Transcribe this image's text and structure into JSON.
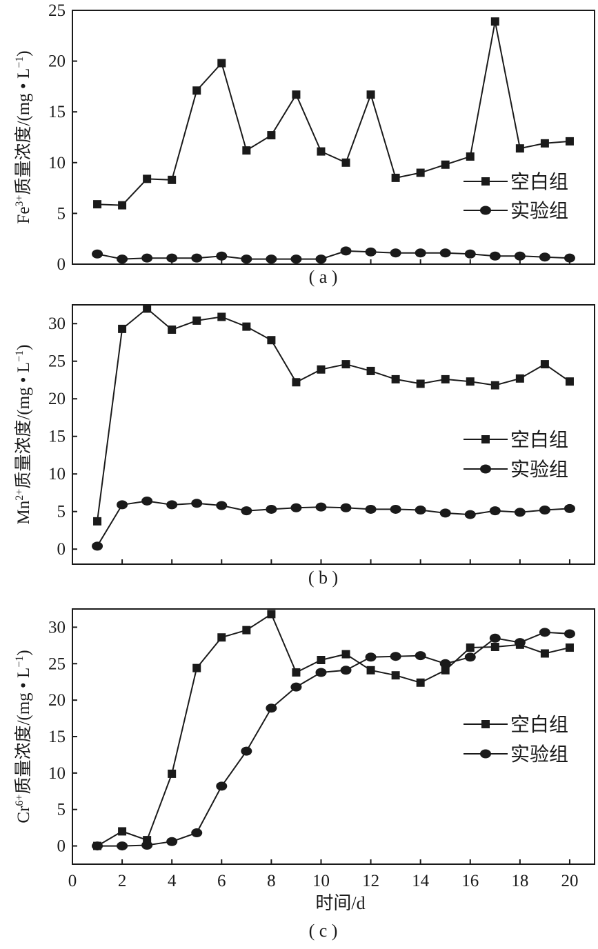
{
  "chart_data": [
    {
      "type": "line",
      "panel_label": "( a )",
      "ylabel_main": "Fe",
      "ylabel_sup": "3+",
      "ylabel_rest": "质量浓度/(mg • L",
      "ylabel_unit_sup": "−1",
      "ylabel_close": ")",
      "ylim": [
        0,
        25
      ],
      "yticks": [
        0,
        5,
        10,
        15,
        20,
        25
      ],
      "ytick_labels": [
        "0",
        "5",
        "10",
        "15",
        "20",
        "25"
      ],
      "xlim": [
        0,
        21
      ],
      "xticks": [
        2,
        4,
        6,
        8,
        10,
        12,
        14,
        16,
        18,
        20
      ],
      "show_xtick_labels": false,
      "legend_position": "right",
      "x": [
        1,
        2,
        3,
        4,
        5,
        6,
        7,
        8,
        9,
        10,
        11,
        12,
        13,
        14,
        15,
        16,
        17,
        18,
        19,
        20
      ],
      "series": [
        {
          "name": "空白组",
          "marker": "square",
          "values": [
            5.9,
            5.8,
            8.4,
            8.3,
            17.1,
            19.8,
            11.2,
            12.7,
            16.7,
            11.1,
            10.0,
            16.7,
            8.5,
            9.0,
            9.8,
            10.6,
            23.9,
            11.4,
            11.9,
            12.1
          ]
        },
        {
          "name": "实验组",
          "marker": "circle",
          "values": [
            1.0,
            0.5,
            0.6,
            0.6,
            0.6,
            0.8,
            0.5,
            0.5,
            0.5,
            0.5,
            1.3,
            1.2,
            1.1,
            1.1,
            1.1,
            1.0,
            0.8,
            0.8,
            0.7,
            0.6
          ]
        }
      ]
    },
    {
      "type": "line",
      "panel_label": "( b )",
      "ylabel_main": "Mn",
      "ylabel_sup": "2+",
      "ylabel_rest": "质量浓度/(mg • L",
      "ylabel_unit_sup": "−1",
      "ylabel_close": ")",
      "ylim": [
        -2,
        32.5
      ],
      "yticks": [
        0,
        5,
        10,
        15,
        20,
        25,
        30
      ],
      "ytick_labels": [
        "0",
        "5",
        "10",
        "15",
        "20",
        "25",
        "30"
      ],
      "xlim": [
        0,
        21
      ],
      "xticks": [
        2,
        4,
        6,
        8,
        10,
        12,
        14,
        16,
        18,
        20
      ],
      "show_xtick_labels": false,
      "legend_position": "right",
      "x": [
        1,
        2,
        3,
        4,
        5,
        6,
        7,
        8,
        9,
        10,
        11,
        12,
        13,
        14,
        15,
        16,
        17,
        18,
        19,
        20
      ],
      "series": [
        {
          "name": "空白组",
          "marker": "square",
          "values": [
            3.7,
            29.3,
            32.0,
            29.2,
            30.4,
            30.9,
            29.6,
            27.8,
            22.2,
            23.9,
            24.6,
            23.7,
            22.6,
            22.0,
            22.6,
            22.3,
            21.8,
            22.7,
            24.6,
            22.3
          ]
        },
        {
          "name": "实验组",
          "marker": "circle",
          "values": [
            0.4,
            5.9,
            6.4,
            5.9,
            6.1,
            5.8,
            5.1,
            5.3,
            5.5,
            5.6,
            5.5,
            5.3,
            5.3,
            5.2,
            4.8,
            4.6,
            5.1,
            4.9,
            5.2,
            5.4
          ]
        }
      ]
    },
    {
      "type": "line",
      "panel_label": "( c )",
      "ylabel_main": "Cr",
      "ylabel_sup": "6+",
      "ylabel_rest": "质量浓度/(mg • L",
      "ylabel_unit_sup": "−1",
      "ylabel_close": ")",
      "xlabel": "时间/d",
      "ylim": [
        -2.5,
        32.5
      ],
      "yticks": [
        0,
        5,
        10,
        15,
        20,
        25,
        30
      ],
      "ytick_labels": [
        "0",
        "5",
        "10",
        "15",
        "20",
        "25",
        "30"
      ],
      "xlim": [
        0,
        21
      ],
      "xticks": [
        0,
        2,
        4,
        6,
        8,
        10,
        12,
        14,
        16,
        18,
        20
      ],
      "xtick_labels": [
        "0",
        "2",
        "4",
        "6",
        "8",
        "10",
        "12",
        "14",
        "16",
        "18",
        "20"
      ],
      "show_xtick_labels": true,
      "legend_position": "right",
      "x": [
        1,
        2,
        3,
        4,
        5,
        6,
        7,
        8,
        9,
        10,
        11,
        12,
        13,
        14,
        15,
        16,
        17,
        18,
        19,
        20
      ],
      "series": [
        {
          "name": "空白组",
          "marker": "square",
          "values": [
            0.0,
            2.0,
            0.8,
            9.9,
            24.4,
            28.6,
            29.6,
            31.8,
            23.8,
            25.5,
            26.3,
            24.1,
            23.4,
            22.4,
            24.1,
            27.2,
            27.3,
            27.6,
            26.4,
            27.2
          ]
        },
        {
          "name": "实验组",
          "marker": "circle",
          "values": [
            0.0,
            0.0,
            0.1,
            0.6,
            1.8,
            8.2,
            13.0,
            18.9,
            21.8,
            23.8,
            24.1,
            25.9,
            26.0,
            26.1,
            25.0,
            25.9,
            28.5,
            27.9,
            29.3,
            29.1
          ]
        }
      ]
    }
  ]
}
